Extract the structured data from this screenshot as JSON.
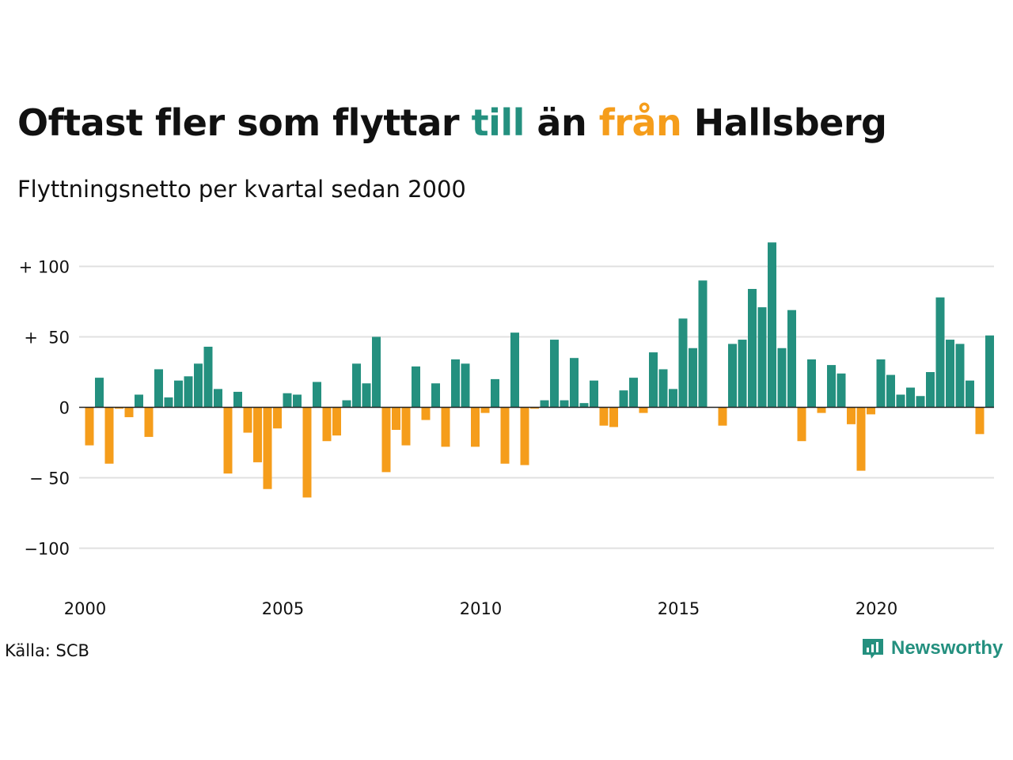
{
  "title": {
    "part1": "Oftast fler som flyttar ",
    "highlight_in": "till",
    "part2": " än ",
    "highlight_out": "från",
    "part3": " Hallsberg"
  },
  "subtitle": "Flyttningsnetto per kvartal sedan 2000",
  "source": "Källa: SCB",
  "brand": "Newsworthy",
  "colors": {
    "positive": "#24907f",
    "negative": "#f59d1b",
    "grid": "#e0e0e0",
    "text": "#111111"
  },
  "chart_data": {
    "type": "bar",
    "x_start": "2000 Q1",
    "xticks": [
      "2000",
      "2005",
      "2010",
      "2015",
      "2020"
    ],
    "yticks": [
      {
        "value": 100,
        "label": "+ 100"
      },
      {
        "value": 50,
        "label": "+  50"
      },
      {
        "value": 0,
        "label": "0"
      },
      {
        "value": -50,
        "label": "− 50"
      },
      {
        "value": -100,
        "label": "−100"
      }
    ],
    "ylim": [
      -125,
      120
    ],
    "grid": true,
    "values": [
      -27,
      21,
      -40,
      -1,
      -7,
      9,
      -21,
      27,
      7,
      19,
      22,
      31,
      43,
      13,
      -47,
      11,
      -18,
      -39,
      -58,
      -15,
      10,
      9,
      -64,
      18,
      -24,
      -20,
      5,
      31,
      17,
      50,
      -46,
      -16,
      -27,
      29,
      -9,
      17,
      -28,
      34,
      31,
      -28,
      -4,
      20,
      -40,
      53,
      -41,
      -1,
      5,
      48,
      5,
      35,
      3,
      19,
      -13,
      -14,
      12,
      21,
      -4,
      39,
      27,
      13,
      63,
      42,
      90,
      0,
      -13,
      45,
      48,
      84,
      71,
      117,
      42,
      69,
      -24,
      34,
      -4,
      30,
      24,
      -12,
      -45,
      -5,
      34,
      23,
      9,
      14,
      8,
      25,
      78,
      48,
      45,
      19,
      -19,
      51
    ]
  }
}
